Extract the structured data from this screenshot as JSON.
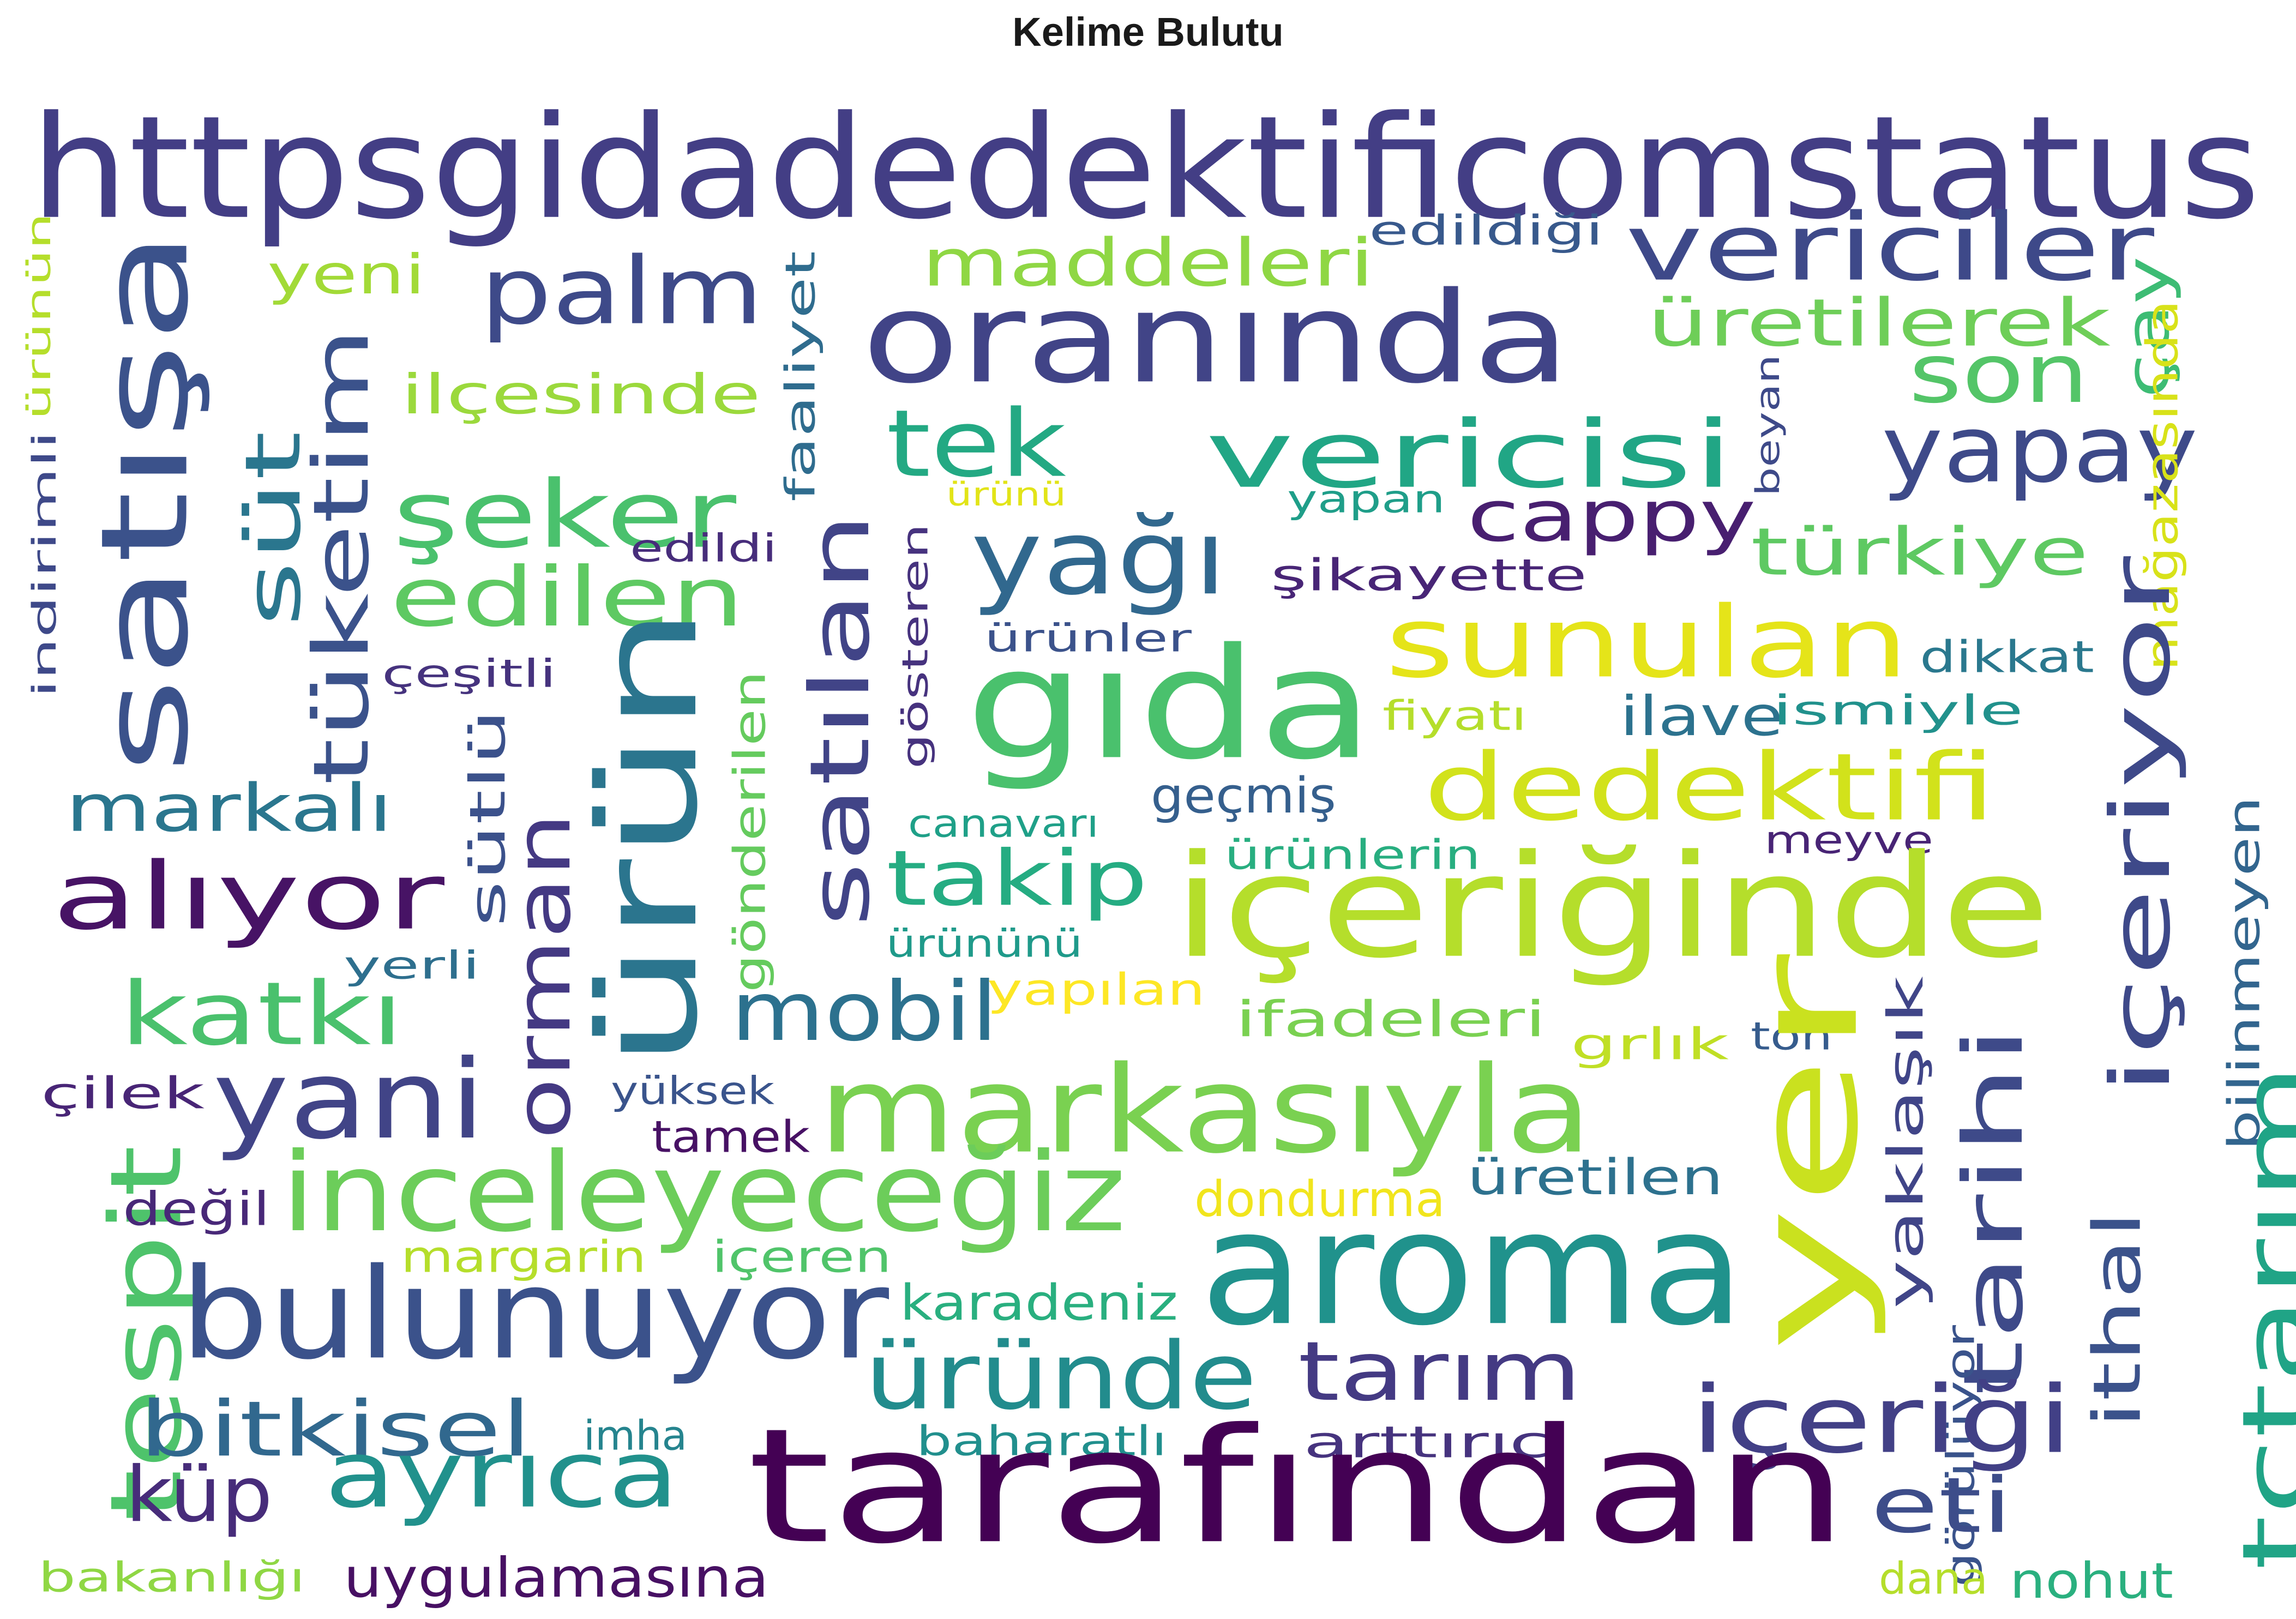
{
  "title": "Kelime Bulutu",
  "words": [
    {
      "text": "httpsgidadedektificomstatus",
      "color": "#433e85"
    },
    {
      "text": "satışa",
      "color": "#3b528b"
    },
    {
      "text": "palm",
      "color": "#3e4a89"
    },
    {
      "text": "oranında",
      "color": "#414487"
    },
    {
      "text": "vericiler",
      "color": "#3e4989"
    },
    {
      "text": "maddeleri",
      "color": "#8fd744"
    },
    {
      "text": "yeni",
      "color": "#a2da37"
    },
    {
      "text": "üretilerek",
      "color": "#6ece58"
    },
    {
      "text": "edildiği",
      "color": "#38598c"
    },
    {
      "text": "faaliyet",
      "color": "#2f6c8e"
    },
    {
      "text": "ilçesinde",
      "color": "#9bd93c"
    },
    {
      "text": "son",
      "color": "#54c568"
    },
    {
      "text": "çay",
      "color": "#3dbc74"
    },
    {
      "text": "tek",
      "color": "#23a983"
    },
    {
      "text": "vericisi",
      "color": "#21a685"
    },
    {
      "text": "yapay",
      "color": "#3e4a89"
    },
    {
      "text": "şeker",
      "color": "#4ac16d"
    },
    {
      "text": "tüketim",
      "color": "#3b528b"
    },
    {
      "text": "süt",
      "color": "#2a768e"
    },
    {
      "text": "ürünün",
      "color": "#b5de2b"
    },
    {
      "text": "indirimli",
      "color": "#3e4989"
    },
    {
      "text": "beyan",
      "color": "#3e4a89"
    },
    {
      "text": "mağazasında",
      "color": "#d8e219"
    },
    {
      "text": "ürünü",
      "color": "#e2e418"
    },
    {
      "text": "yapan",
      "color": "#1f9e89"
    },
    {
      "text": "cappy",
      "color": "#481f70"
    },
    {
      "text": "yağı",
      "color": "#31688e"
    },
    {
      "text": "türkiye",
      "color": "#5ec962"
    },
    {
      "text": "edildi",
      "color": "#472d7b"
    },
    {
      "text": "şikayette",
      "color": "#482576"
    },
    {
      "text": "edilen",
      "color": "#5ec962"
    },
    {
      "text": "satılan",
      "color": "#414487"
    },
    {
      "text": "sunulan",
      "color": "#e5e419"
    },
    {
      "text": "gıda",
      "color": "#4ac16d"
    },
    {
      "text": "ürünler",
      "color": "#3b528b"
    },
    {
      "text": "dikkat",
      "color": "#2a788e"
    },
    {
      "text": "çeşitli",
      "color": "#46337e"
    },
    {
      "text": "gösteren",
      "color": "#46327e"
    },
    {
      "text": "fiyatı",
      "color": "#b5de2b"
    },
    {
      "text": "ilave",
      "color": "#2c728e"
    },
    {
      "text": "ismiyle",
      "color": "#21918c"
    },
    {
      "text": "ürün",
      "color": "#2b758e"
    },
    {
      "text": "sütlü",
      "color": "#3b518b"
    },
    {
      "text": "gönderilen",
      "color": "#65cb5e"
    },
    {
      "text": "dedektifi",
      "color": "#d2e21b"
    },
    {
      "text": "markalı",
      "color": "#2a768e"
    },
    {
      "text": "geçmiş",
      "color": "#355f8d"
    },
    {
      "text": "canavarı",
      "color": "#1fa088"
    },
    {
      "text": "ürünlerin",
      "color": "#28ae80"
    },
    {
      "text": "meyve",
      "color": "#482475"
    },
    {
      "text": "alıyor",
      "color": "#471365"
    },
    {
      "text": "orman",
      "color": "#443983"
    },
    {
      "text": "takip",
      "color": "#25ac82"
    },
    {
      "text": "içeriğinde",
      "color": "#b5de2b"
    },
    {
      "text": "ürününü",
      "color": "#1f9a8a"
    },
    {
      "text": "içeriyor",
      "color": "#3e4989"
    },
    {
      "text": "yerli",
      "color": "#2e6f8e"
    },
    {
      "text": "mobil",
      "color": "#2c718e"
    },
    {
      "text": "yapılan",
      "color": "#fde725"
    },
    {
      "text": "katkı",
      "color": "#4ac16d"
    },
    {
      "text": "ifadeleri",
      "color": "#7ad151"
    },
    {
      "text": "yaklaşık",
      "color": "#404588"
    },
    {
      "text": "grlık",
      "color": "#c0df25"
    },
    {
      "text": "ton",
      "color": "#365c8d"
    },
    {
      "text": "bilinmeyen",
      "color": "#32658e"
    },
    {
      "text": "yani",
      "color": "#414487"
    },
    {
      "text": "markasıyla",
      "color": "#7ad151"
    },
    {
      "text": "tarihi",
      "color": "#3e4a89"
    },
    {
      "text": "yer",
      "color": "#cae11f"
    },
    {
      "text": "çilek",
      "color": "#482576"
    },
    {
      "text": "yüksek",
      "color": "#3a548c"
    },
    {
      "text": "tamek",
      "color": "#471164"
    },
    {
      "text": "tespit",
      "color": "#4ec36b"
    },
    {
      "text": "inceleyeceğiz",
      "color": "#6ccd5a"
    },
    {
      "text": "üretilen",
      "color": "#2d718e"
    },
    {
      "text": "değil",
      "color": "#482878"
    },
    {
      "text": "dondurma",
      "color": "#f1e51d"
    },
    {
      "text": "tctarım",
      "color": "#20a486"
    },
    {
      "text": "margarin",
      "color": "#b5de2b"
    },
    {
      "text": "içeren",
      "color": "#50c46a"
    },
    {
      "text": "aroma",
      "color": "#20928c"
    },
    {
      "text": "bulunuyor",
      "color": "#3b528b"
    },
    {
      "text": "ithal",
      "color": "#3b528b"
    },
    {
      "text": "karadeniz",
      "color": "#29af7f"
    },
    {
      "text": "üründe",
      "color": "#228c8d"
    },
    {
      "text": "tarım",
      "color": "#443a83"
    },
    {
      "text": "görülüyor",
      "color": "#3a538b"
    },
    {
      "text": "bitkisel",
      "color": "#31688e"
    },
    {
      "text": "içeriği",
      "color": "#424086"
    },
    {
      "text": "imha",
      "color": "#25848e"
    },
    {
      "text": "baharatlı",
      "color": "#218f8d"
    },
    {
      "text": "arttırıcı",
      "color": "#46337e"
    },
    {
      "text": "küp",
      "color": "#472c7a"
    },
    {
      "text": "ayrıca",
      "color": "#21918c"
    },
    {
      "text": "tarafından",
      "color": "#440154"
    },
    {
      "text": "eti",
      "color": "#3d4d8a"
    },
    {
      "text": "bakanlığı",
      "color": "#8fd744"
    },
    {
      "text": "uygulamasına",
      "color": "#471063"
    },
    {
      "text": "dana",
      "color": "#b5de2b"
    },
    {
      "text": "nohut",
      "color": "#2ab07f"
    }
  ]
}
